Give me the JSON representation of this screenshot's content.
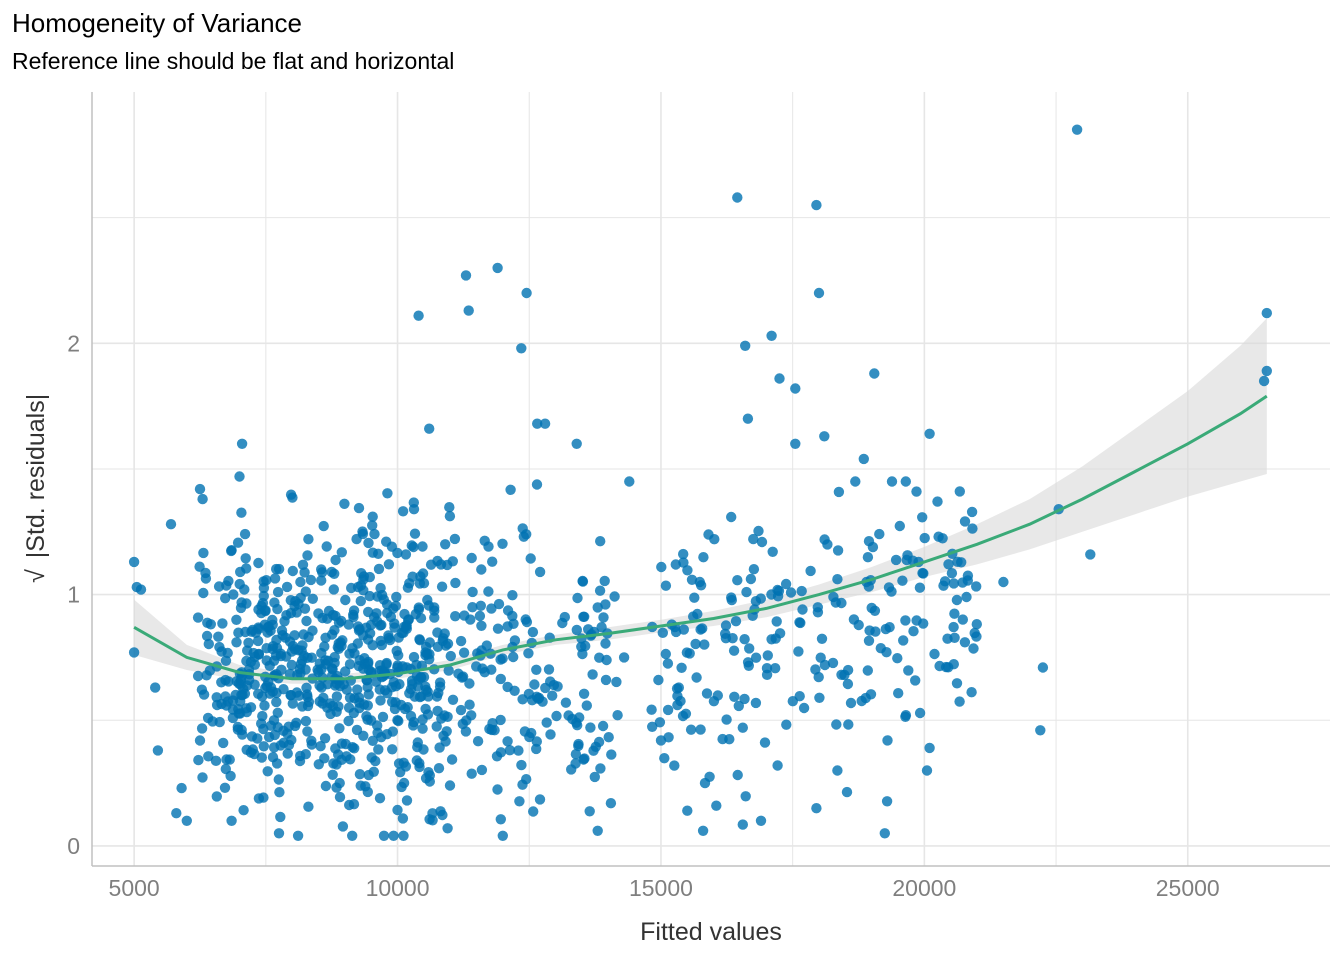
{
  "chart_data": {
    "type": "scatter",
    "title": "Homogeneity of Variance",
    "subtitle": "Reference line should be flat and horizontal",
    "xlabel": "Fitted values",
    "ylabel": "|Std. residuals|",
    "ylabel_prefix": "√",
    "xlim": [
      4200,
      27700
    ],
    "ylim": [
      -0.08,
      3.0
    ],
    "x_ticks": [
      5000,
      10000,
      15000,
      20000,
      25000
    ],
    "x_tick_labels": [
      "5000",
      "10000",
      "15000",
      "20000",
      "25000"
    ],
    "y_ticks": [
      0,
      1,
      2
    ],
    "y_tick_labels": [
      "0",
      "1",
      "2"
    ],
    "grid": true,
    "colors": {
      "points": "#0072b2",
      "smooth_line": "#3aaa78",
      "confidence_band": "#d9d9d9",
      "grid": "#e6e6e6",
      "axis": "#c0c0c0"
    },
    "smooth_line": {
      "x": [
        5000,
        6000,
        7000,
        8000,
        9000,
        10000,
        11000,
        12000,
        13000,
        14000,
        15000,
        16000,
        17000,
        18000,
        19000,
        20000,
        21000,
        22000,
        23000,
        24000,
        25000,
        26000,
        26500
      ],
      "y": [
        0.87,
        0.75,
        0.69,
        0.665,
        0.665,
        0.685,
        0.72,
        0.78,
        0.82,
        0.845,
        0.875,
        0.905,
        0.945,
        1.0,
        1.06,
        1.13,
        1.2,
        1.28,
        1.38,
        1.49,
        1.6,
        1.72,
        1.79
      ]
    },
    "confidence_band": {
      "x": [
        5000,
        6000,
        7000,
        8000,
        9000,
        10000,
        11000,
        12000,
        13000,
        14000,
        15000,
        16000,
        17000,
        18000,
        19000,
        20000,
        21000,
        22000,
        23000,
        24000,
        25000,
        26000,
        26500
      ],
      "lower": [
        0.76,
        0.7,
        0.66,
        0.645,
        0.645,
        0.665,
        0.7,
        0.76,
        0.8,
        0.82,
        0.85,
        0.875,
        0.91,
        0.96,
        1.01,
        1.07,
        1.12,
        1.18,
        1.25,
        1.32,
        1.39,
        1.45,
        1.48
      ],
      "upper": [
        0.98,
        0.8,
        0.72,
        0.685,
        0.685,
        0.705,
        0.74,
        0.8,
        0.84,
        0.87,
        0.9,
        0.935,
        0.98,
        1.04,
        1.11,
        1.19,
        1.28,
        1.38,
        1.51,
        1.66,
        1.81,
        1.99,
        2.1
      ]
    },
    "highlighted_points": [
      [
        5000,
        1.13
      ],
      [
        5050,
        1.03
      ],
      [
        5130,
        1.02
      ],
      [
        5000,
        0.77
      ],
      [
        5400,
        0.63
      ],
      [
        5450,
        0.38
      ],
      [
        5700,
        1.28
      ],
      [
        5800,
        0.13
      ],
      [
        5900,
        0.23
      ],
      [
        6000,
        0.1
      ],
      [
        6250,
        1.42
      ],
      [
        6300,
        1.38
      ],
      [
        6850,
        0.1
      ],
      [
        7000,
        1.47
      ],
      [
        7050,
        1.6
      ],
      [
        7750,
        0.05
      ],
      [
        10400,
        2.11
      ],
      [
        10600,
        1.66
      ],
      [
        10950,
        0.07
      ],
      [
        11300,
        2.27
      ],
      [
        11350,
        2.13
      ],
      [
        11900,
        2.3
      ],
      [
        12350,
        1.98
      ],
      [
        12450,
        2.2
      ],
      [
        12650,
        1.68
      ],
      [
        12800,
        1.68
      ],
      [
        13400,
        1.6
      ],
      [
        13800,
        0.06
      ],
      [
        14050,
        0.17
      ],
      [
        14400,
        1.45
      ],
      [
        14300,
        0.75
      ],
      [
        15000,
        0.42
      ],
      [
        15500,
        0.14
      ],
      [
        15800,
        0.06
      ],
      [
        16050,
        0.16
      ],
      [
        16450,
        2.58
      ],
      [
        16600,
        1.99
      ],
      [
        16650,
        1.7
      ],
      [
        16900,
        0.1
      ],
      [
        17100,
        2.03
      ],
      [
        17250,
        1.86
      ],
      [
        17550,
        1.6
      ],
      [
        17550,
        1.82
      ],
      [
        17950,
        2.55
      ],
      [
        17950,
        0.15
      ],
      [
        18000,
        2.2
      ],
      [
        18100,
        1.63
      ],
      [
        18350,
        0.3
      ],
      [
        18850,
        1.54
      ],
      [
        19050,
        1.88
      ],
      [
        19250,
        0.05
      ],
      [
        19300,
        0.42
      ],
      [
        19650,
        0.52
      ],
      [
        19850,
        1.41
      ],
      [
        20050,
        0.3
      ],
      [
        20100,
        1.64
      ],
      [
        20100,
        0.39
      ],
      [
        20250,
        1.37
      ],
      [
        21500,
        1.05
      ],
      [
        22250,
        0.71
      ],
      [
        22200,
        0.46
      ],
      [
        22550,
        1.34
      ],
      [
        22900,
        2.85
      ],
      [
        23150,
        1.16
      ],
      [
        26500,
        2.12
      ],
      [
        26500,
        1.89
      ],
      [
        26450,
        1.85
      ]
    ],
    "cluster_summary": [
      {
        "x_range": [
          6200,
          14200
        ],
        "y_range": [
          0.05,
          1.5
        ],
        "count": 820
      },
      {
        "x_range": [
          14800,
          21000
        ],
        "y_range": [
          0.05,
          1.5
        ],
        "count": 230
      }
    ]
  }
}
